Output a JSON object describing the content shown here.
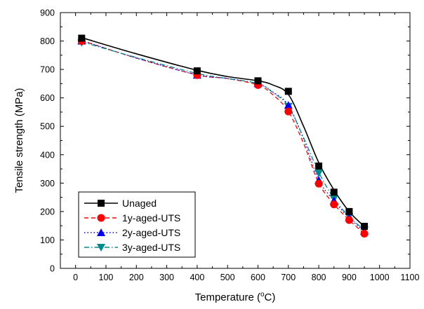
{
  "chart_data": {
    "type": "line",
    "xlabel_main": "Temperature (",
    "xlabel_sup": "o",
    "xlabel_tail": "C)",
    "ylabel": "Tensile strength (MPa)",
    "xlim": [
      -50,
      1100
    ],
    "ylim": [
      0,
      900
    ],
    "xticks": [
      0,
      100,
      200,
      300,
      400,
      500,
      600,
      700,
      800,
      900,
      1000,
      1100
    ],
    "yticks": [
      0,
      100,
      200,
      300,
      400,
      500,
      600,
      700,
      800,
      900
    ],
    "legend_position": "bottom-left",
    "x": [
      20,
      400,
      600,
      700,
      800,
      850,
      900,
      950
    ],
    "series": [
      {
        "name": "Unaged",
        "values": [
          810,
          695,
          660,
          623,
          360,
          268,
          200,
          148
        ],
        "color": "#000000",
        "marker": "square",
        "dash": "",
        "curve": [
          [
            20,
            812
          ],
          [
            200,
            755
          ],
          [
            400,
            697
          ],
          [
            500,
            675
          ],
          [
            600,
            660
          ],
          [
            650,
            645
          ],
          [
            700,
            612
          ],
          [
            750,
            500
          ],
          [
            800,
            372
          ],
          [
            850,
            276
          ],
          [
            900,
            200
          ],
          [
            950,
            147
          ]
        ]
      },
      {
        "name": "1y-aged-UTS",
        "values": [
          800,
          680,
          645,
          552,
          298,
          225,
          170,
          122
        ],
        "color": "#ff0000",
        "marker": "circle",
        "dash": "6,4",
        "curve": [
          [
            20,
            802
          ],
          [
            200,
            740
          ],
          [
            400,
            681
          ],
          [
            500,
            668
          ],
          [
            600,
            645
          ],
          [
            650,
            610
          ],
          [
            700,
            552
          ],
          [
            750,
            440
          ],
          [
            800,
            300
          ],
          [
            850,
            226
          ],
          [
            900,
            170
          ],
          [
            950,
            122
          ]
        ]
      },
      {
        "name": "2y-aged-UTS",
        "values": [
          800,
          680,
          650,
          574,
          310,
          238,
          178,
          130
        ],
        "color": "#0000ff",
        "marker": "triangle-up",
        "dash": "1.5,3",
        "curve": [
          [
            20,
            802
          ],
          [
            200,
            740
          ],
          [
            400,
            681
          ],
          [
            500,
            668
          ],
          [
            600,
            650
          ],
          [
            650,
            620
          ],
          [
            700,
            574
          ],
          [
            750,
            455
          ],
          [
            800,
            312
          ],
          [
            850,
            238
          ],
          [
            900,
            178
          ],
          [
            950,
            130
          ]
        ]
      },
      {
        "name": "3y-aged-UTS",
        "values": [
          795,
          685,
          650,
          570,
          335,
          245,
          182,
          135
        ],
        "color": "#008b8b",
        "marker": "triangle-down",
        "dash": "7,3,1.5,3",
        "curve": [
          [
            20,
            797
          ],
          [
            200,
            742
          ],
          [
            400,
            686
          ],
          [
            500,
            668
          ],
          [
            600,
            650
          ],
          [
            650,
            618
          ],
          [
            700,
            570
          ],
          [
            750,
            460
          ],
          [
            800,
            338
          ],
          [
            850,
            246
          ],
          [
            900,
            182
          ],
          [
            950,
            135
          ]
        ]
      }
    ]
  }
}
